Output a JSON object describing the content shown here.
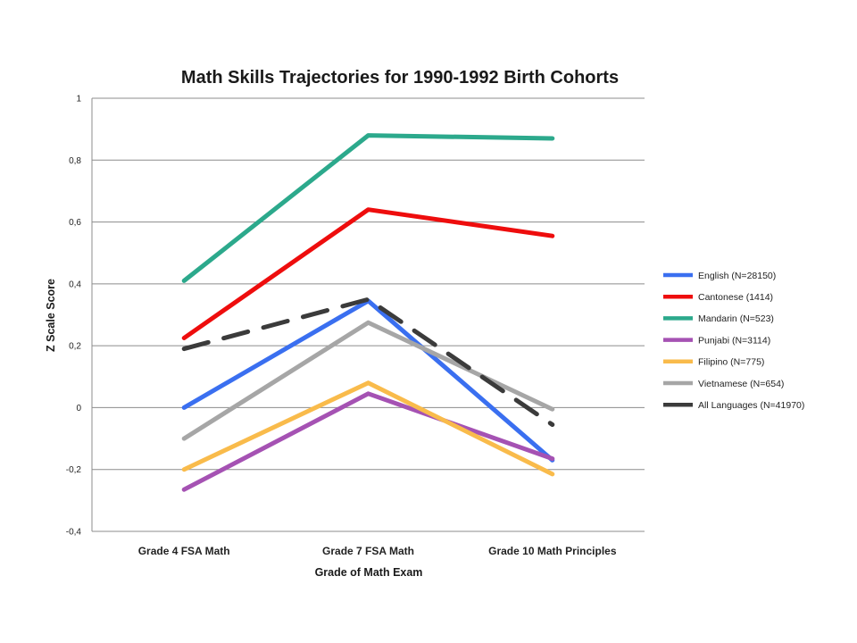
{
  "chart_data": {
    "type": "line",
    "title": "Math Skills Trajectories for 1990-1992 Birth Cohorts",
    "xlabel": "Grade of Math Exam",
    "ylabel": "Z Scale Score",
    "ylim": [
      -0.4,
      1
    ],
    "yticks": [
      -0.4,
      -0.2,
      0,
      0.2,
      0.4,
      0.6,
      0.8,
      1
    ],
    "ytick_labels": [
      "-0,4",
      "-0,2",
      "0",
      "0,2",
      "0,4",
      "0,6",
      "0,8",
      "1"
    ],
    "categories": [
      "Grade 4 FSA Math",
      "Grade 7 FSA Math",
      "Grade 10 Math Principles"
    ],
    "grid": true,
    "legend_position": "right",
    "series": [
      {
        "name": "English (N=28150)",
        "color": "#3a6ff0",
        "dashed": false,
        "values": [
          0.0,
          0.345,
          -0.17
        ]
      },
      {
        "name": "Cantonese (1414)",
        "color": "#ee0d0d",
        "dashed": false,
        "values": [
          0.225,
          0.64,
          0.555
        ]
      },
      {
        "name": "Mandarin (N=523)",
        "color": "#2ca98c",
        "dashed": false,
        "values": [
          0.41,
          0.88,
          0.87
        ]
      },
      {
        "name": "Punjabi (N=3114)",
        "color": "#a552b3",
        "dashed": false,
        "values": [
          -0.265,
          0.045,
          -0.165
        ]
      },
      {
        "name": "Filipino (N=775)",
        "color": "#f9bb4b",
        "dashed": false,
        "values": [
          -0.2,
          0.08,
          -0.215
        ]
      },
      {
        "name": "Vietnamese (N=654)",
        "color": "#a6a6a6",
        "dashed": false,
        "values": [
          -0.1,
          0.275,
          -0.005
        ]
      },
      {
        "name": "All Languages (N=41970)",
        "color": "#3b3b3b",
        "dashed": true,
        "values": [
          0.19,
          0.35,
          -0.055
        ]
      }
    ]
  }
}
